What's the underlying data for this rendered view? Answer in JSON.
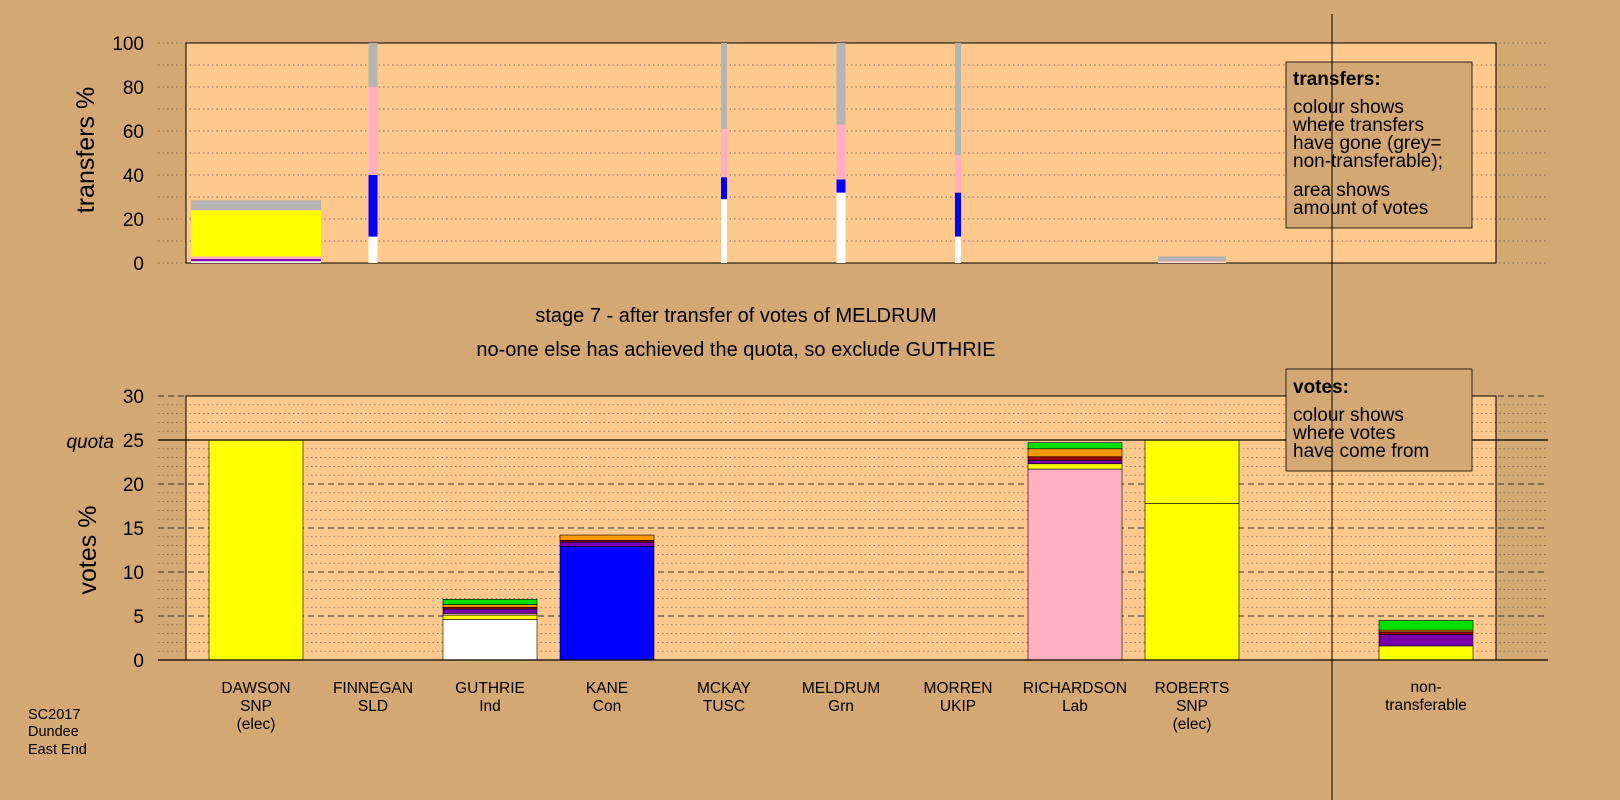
{
  "colors": {
    "background": "#D4A872",
    "plot_bg": "#FFC88C",
    "snp": "#FFFF00",
    "lab": "#FFB0C0",
    "con": "#0000FF",
    "ind": "#FFFFFF",
    "grn": "#00E000",
    "sld": "#FF9900",
    "ukip": "#7700AA",
    "tusc": "#990000",
    "nontransferable": "#B4B4B4"
  },
  "stage": {
    "line1": "stage 7 - after transfer of votes of MELDRUM",
    "line2": "no-one else has achieved the quota, so exclude GUTHRIE"
  },
  "legend_transfers": {
    "title": "transfers:",
    "lines": [
      "colour shows",
      "where transfers",
      "have gone (grey=",
      "non-transferable);",
      "area shows",
      "amount of votes"
    ]
  },
  "legend_votes": {
    "title": "votes:",
    "lines": [
      "colour shows",
      "where votes",
      "have come from"
    ]
  },
  "footer": [
    "SC2017",
    "Dundee",
    "East End"
  ],
  "candidates": [
    {
      "name": "DAWSON",
      "party": "SNP",
      "note": "(elec)"
    },
    {
      "name": "FINNEGAN",
      "party": "SLD",
      "note": ""
    },
    {
      "name": "GUTHRIE",
      "party": "Ind",
      "note": ""
    },
    {
      "name": "KANE",
      "party": "Con",
      "note": ""
    },
    {
      "name": "MCKAY",
      "party": "TUSC",
      "note": ""
    },
    {
      "name": "MELDRUM",
      "party": "Grn",
      "note": ""
    },
    {
      "name": "MORREN",
      "party": "UKIP",
      "note": ""
    },
    {
      "name": "RICHARDSON",
      "party": "Lab",
      "note": ""
    },
    {
      "name": "ROBERTS",
      "party": "SNP",
      "note": "(elec)"
    },
    {
      "name": "non-",
      "party": "transferable",
      "note": ""
    }
  ],
  "chart_data": [
    {
      "type": "bar",
      "ylabel": "transfers %",
      "ylim": [
        0,
        100
      ],
      "yticks": [
        0,
        20,
        40,
        60,
        80,
        100
      ],
      "grid": "dotted",
      "description_note": "",
      "columns": [
        {
          "candidate": "DAWSON",
          "segments": [
            {
              "color": "ind",
              "value": 0.8
            },
            {
              "color": "ukip",
              "value": 1.0
            },
            {
              "color": "lab",
              "value": 1.2
            },
            {
              "color": "snp",
              "value": 21.0
            },
            {
              "color": "nontransferable",
              "value": 4.5
            }
          ]
        },
        {
          "candidate": "FINNEGAN",
          "segments": [
            {
              "color": "ind",
              "value": 12.0
            },
            {
              "color": "con",
              "value": 28.0
            },
            {
              "color": "lab",
              "value": 40.0
            },
            {
              "color": "nontransferable",
              "value": 20.0
            }
          ]
        },
        {
          "candidate": "MCKAY",
          "segments": [
            {
              "color": "ind",
              "value": 29.0
            },
            {
              "color": "con",
              "value": 10.0
            },
            {
              "color": "lab",
              "value": 22.0
            },
            {
              "color": "nontransferable",
              "value": 39.0
            }
          ]
        },
        {
          "candidate": "MELDRUM",
          "segments": [
            {
              "color": "ind",
              "value": 32.0
            },
            {
              "color": "con",
              "value": 6.0
            },
            {
              "color": "lab",
              "value": 25.0
            },
            {
              "color": "nontransferable",
              "value": 37.0
            }
          ]
        },
        {
          "candidate": "MORREN",
          "segments": [
            {
              "color": "ind",
              "value": 12.0
            },
            {
              "color": "con",
              "value": 20.0
            },
            {
              "color": "lab",
              "value": 17.0
            },
            {
              "color": "nontransferable",
              "value": 51.0
            }
          ]
        },
        {
          "candidate": "ROBERTS",
          "segments": [
            {
              "color": "ind",
              "value": 0.3
            },
            {
              "color": "lab",
              "value": 0.5
            },
            {
              "color": "nontransferable",
              "value": 2.2
            }
          ]
        }
      ]
    },
    {
      "type": "bar",
      "ylabel": "votes %",
      "ylim": [
        0,
        30
      ],
      "yticks": [
        0,
        5,
        10,
        15,
        20,
        25,
        30
      ],
      "quota": 25,
      "quota_label": "quota",
      "grid": "dashed",
      "columns": [
        {
          "candidate": "DAWSON",
          "segments": [
            {
              "color": "snp",
              "value": 25.0
            }
          ]
        },
        {
          "candidate": "FINNEGAN",
          "segments": []
        },
        {
          "candidate": "GUTHRIE",
          "segments": [
            {
              "color": "ind",
              "value": 4.6
            },
            {
              "color": "snp",
              "value": 0.5
            },
            {
              "color": "lab",
              "value": 0.2
            },
            {
              "color": "ukip",
              "value": 0.5
            },
            {
              "color": "tusc",
              "value": 0.2
            },
            {
              "color": "sld",
              "value": 0.3
            },
            {
              "color": "grn",
              "value": 0.6
            }
          ]
        },
        {
          "candidate": "KANE",
          "segments": [
            {
              "color": "con",
              "value": 12.9
            },
            {
              "color": "ukip",
              "value": 0.5
            },
            {
              "color": "tusc",
              "value": 0.2
            },
            {
              "color": "sld",
              "value": 0.6
            }
          ]
        },
        {
          "candidate": "MCKAY",
          "segments": []
        },
        {
          "candidate": "MELDRUM",
          "segments": []
        },
        {
          "candidate": "MORREN",
          "segments": []
        },
        {
          "candidate": "RICHARDSON",
          "segments": [
            {
              "color": "lab",
              "value": 21.7
            },
            {
              "color": "snp",
              "value": 0.6
            },
            {
              "color": "ukip",
              "value": 0.4
            },
            {
              "color": "tusc",
              "value": 0.4
            },
            {
              "color": "sld",
              "value": 0.9
            },
            {
              "color": "grn",
              "value": 0.7
            }
          ]
        },
        {
          "candidate": "ROBERTS",
          "segments": [
            {
              "color": "snp",
              "value": 17.8
            },
            {
              "color": "snp",
              "value": 7.2
            }
          ]
        },
        {
          "candidate": "non-transferable",
          "segments": [
            {
              "color": "snp",
              "value": 1.6
            },
            {
              "color": "ukip",
              "value": 1.3
            },
            {
              "color": "tusc",
              "value": 0.3
            },
            {
              "color": "sld",
              "value": 0.2
            },
            {
              "color": "grn",
              "value": 1.1
            }
          ]
        }
      ]
    }
  ]
}
